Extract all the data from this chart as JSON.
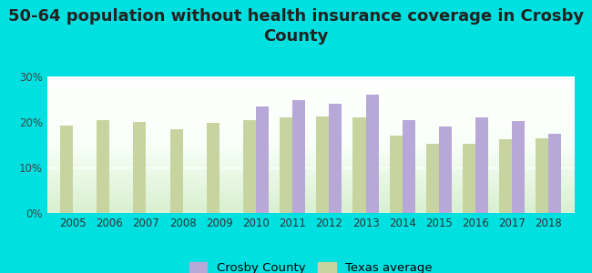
{
  "title": "50-64 population without health insurance coverage in Crosby\nCounty",
  "years": [
    2005,
    2006,
    2007,
    2008,
    2009,
    2010,
    2011,
    2012,
    2013,
    2014,
    2015,
    2016,
    2017,
    2018
  ],
  "crosby": [
    null,
    null,
    null,
    null,
    null,
    23.5,
    24.8,
    24.0,
    26.0,
    20.5,
    19.0,
    21.0,
    20.3,
    17.5
  ],
  "texas": [
    19.2,
    20.5,
    20.1,
    18.5,
    19.8,
    20.5,
    21.0,
    21.2,
    21.0,
    17.0,
    15.3,
    15.3,
    16.2,
    16.5
  ],
  "crosby_color": "#b8a8d8",
  "texas_color": "#c8d4a0",
  "cyan_bg": "#00e0e0",
  "ylim": [
    0,
    30
  ],
  "yticks": [
    0,
    10,
    20,
    30
  ],
  "ytick_labels": [
    "0%",
    "10%",
    "20%",
    "30%"
  ],
  "bar_width": 0.35,
  "title_fontsize": 13,
  "tick_fontsize": 8.5,
  "legend_fontsize": 9.5
}
